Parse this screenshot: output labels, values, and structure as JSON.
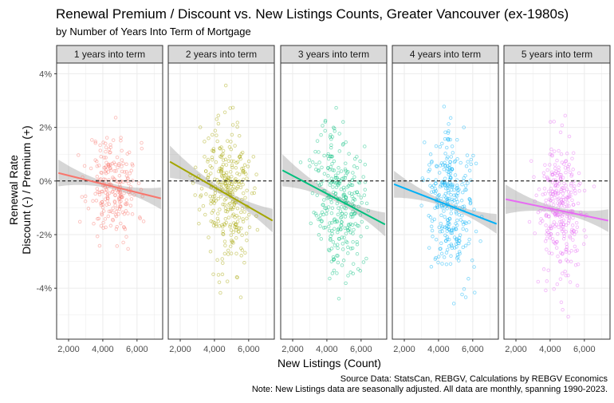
{
  "chart_data": {
    "type": "scatter",
    "title": "Renewal Premium / Discount vs. New Listings Counts, Greater Vancouver (ex-1980s)",
    "subtitle": "by Number of Years Into Term of Mortgage",
    "xlabel": "New Listings (Count)",
    "ylabel_lines": [
      "Renewal Rate",
      "Discount (-) / Premium (+)"
    ],
    "caption_lines": [
      "Source Data: StatsCan, REBGV, Calculations by REBGV Economics",
      "Note: New Listings data are seasonally adjusted. All data are monthly, spanning 1990-2023."
    ],
    "xlim": [
      1300,
      7500
    ],
    "ylim": [
      -5.9,
      4.4
    ],
    "x_ticks": [
      2000,
      4000,
      6000
    ],
    "x_tick_labels": [
      "2,000",
      "4,000",
      "6,000"
    ],
    "y_ticks": [
      -4,
      -2,
      0,
      2,
      4
    ],
    "y_tick_labels": [
      "-4%",
      "-2%",
      "0%",
      "2%",
      "4%"
    ],
    "reference_line": 0,
    "grid": true,
    "panels": [
      {
        "label": "1 years into term",
        "color": "#F8766D",
        "fit": {
          "x": [
            1400,
            7400
          ],
          "y": [
            0.3,
            -0.65
          ]
        },
        "band_halfwidth": {
          "ends": 0.5,
          "center": 0.1
        },
        "points": {
          "n": 230,
          "center": [
            4600,
            -0.2
          ],
          "spread": [
            720,
            0.95
          ],
          "seed": 11
        }
      },
      {
        "label": "2 years into term",
        "color": "#A3A500",
        "fit": {
          "x": [
            1400,
            7400
          ],
          "y": [
            0.72,
            -1.48
          ]
        },
        "band_halfwidth": {
          "ends": 0.6,
          "center": 0.12
        },
        "points": {
          "n": 310,
          "center": [
            4700,
            -0.45
          ],
          "spread": [
            720,
            1.3
          ],
          "seed": 23
        }
      },
      {
        "label": "3 years into term",
        "color": "#00BF7D",
        "fit": {
          "x": [
            1400,
            7400
          ],
          "y": [
            0.4,
            -1.62
          ]
        },
        "band_halfwidth": {
          "ends": 0.6,
          "center": 0.12
        },
        "points": {
          "n": 300,
          "center": [
            4700,
            -0.6
          ],
          "spread": [
            720,
            1.35
          ],
          "seed": 37
        }
      },
      {
        "label": "4 years into term",
        "color": "#00B0F6",
        "fit": {
          "x": [
            1400,
            7400
          ],
          "y": [
            -0.12,
            -1.6
          ]
        },
        "band_halfwidth": {
          "ends": 0.5,
          "center": 0.1
        },
        "points": {
          "n": 300,
          "center": [
            4700,
            -0.8
          ],
          "spread": [
            700,
            1.3
          ],
          "seed": 41
        }
      },
      {
        "label": "5 years into term",
        "color": "#E76BF3",
        "fit": {
          "x": [
            1400,
            7400
          ],
          "y": [
            -0.68,
            -1.48
          ]
        },
        "band_halfwidth": {
          "ends": 0.55,
          "center": 0.1
        },
        "points": {
          "n": 300,
          "center": [
            4650,
            -1.1
          ],
          "spread": [
            700,
            1.3
          ],
          "seed": 53
        }
      }
    ]
  }
}
